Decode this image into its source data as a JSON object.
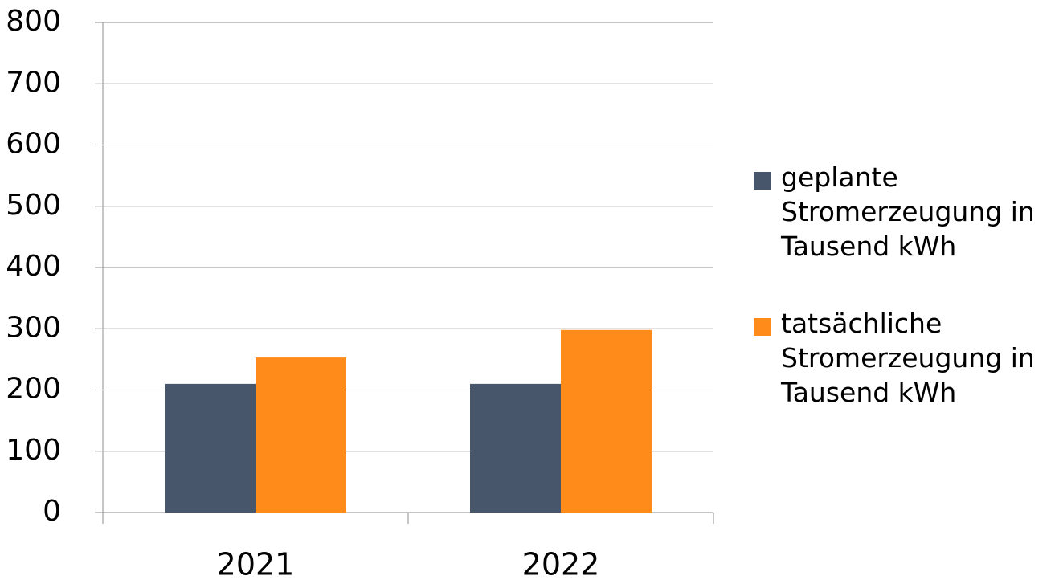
{
  "chart_data": {
    "type": "bar",
    "categories": [
      "2021",
      "2022"
    ],
    "series": [
      {
        "name": "geplante Stromerzeugung in Tausend kWh",
        "color": "#47566b",
        "values": [
          210,
          210
        ]
      },
      {
        "name": "tatsächliche Stromerzeugung in Tausend kWh",
        "color": "#ff8c1a",
        "values": [
          253,
          298
        ]
      }
    ],
    "ylim": [
      0,
      800
    ],
    "yticks": [
      0,
      100,
      200,
      300,
      400,
      500,
      600,
      700,
      800
    ],
    "grid": true,
    "legend": "right"
  }
}
